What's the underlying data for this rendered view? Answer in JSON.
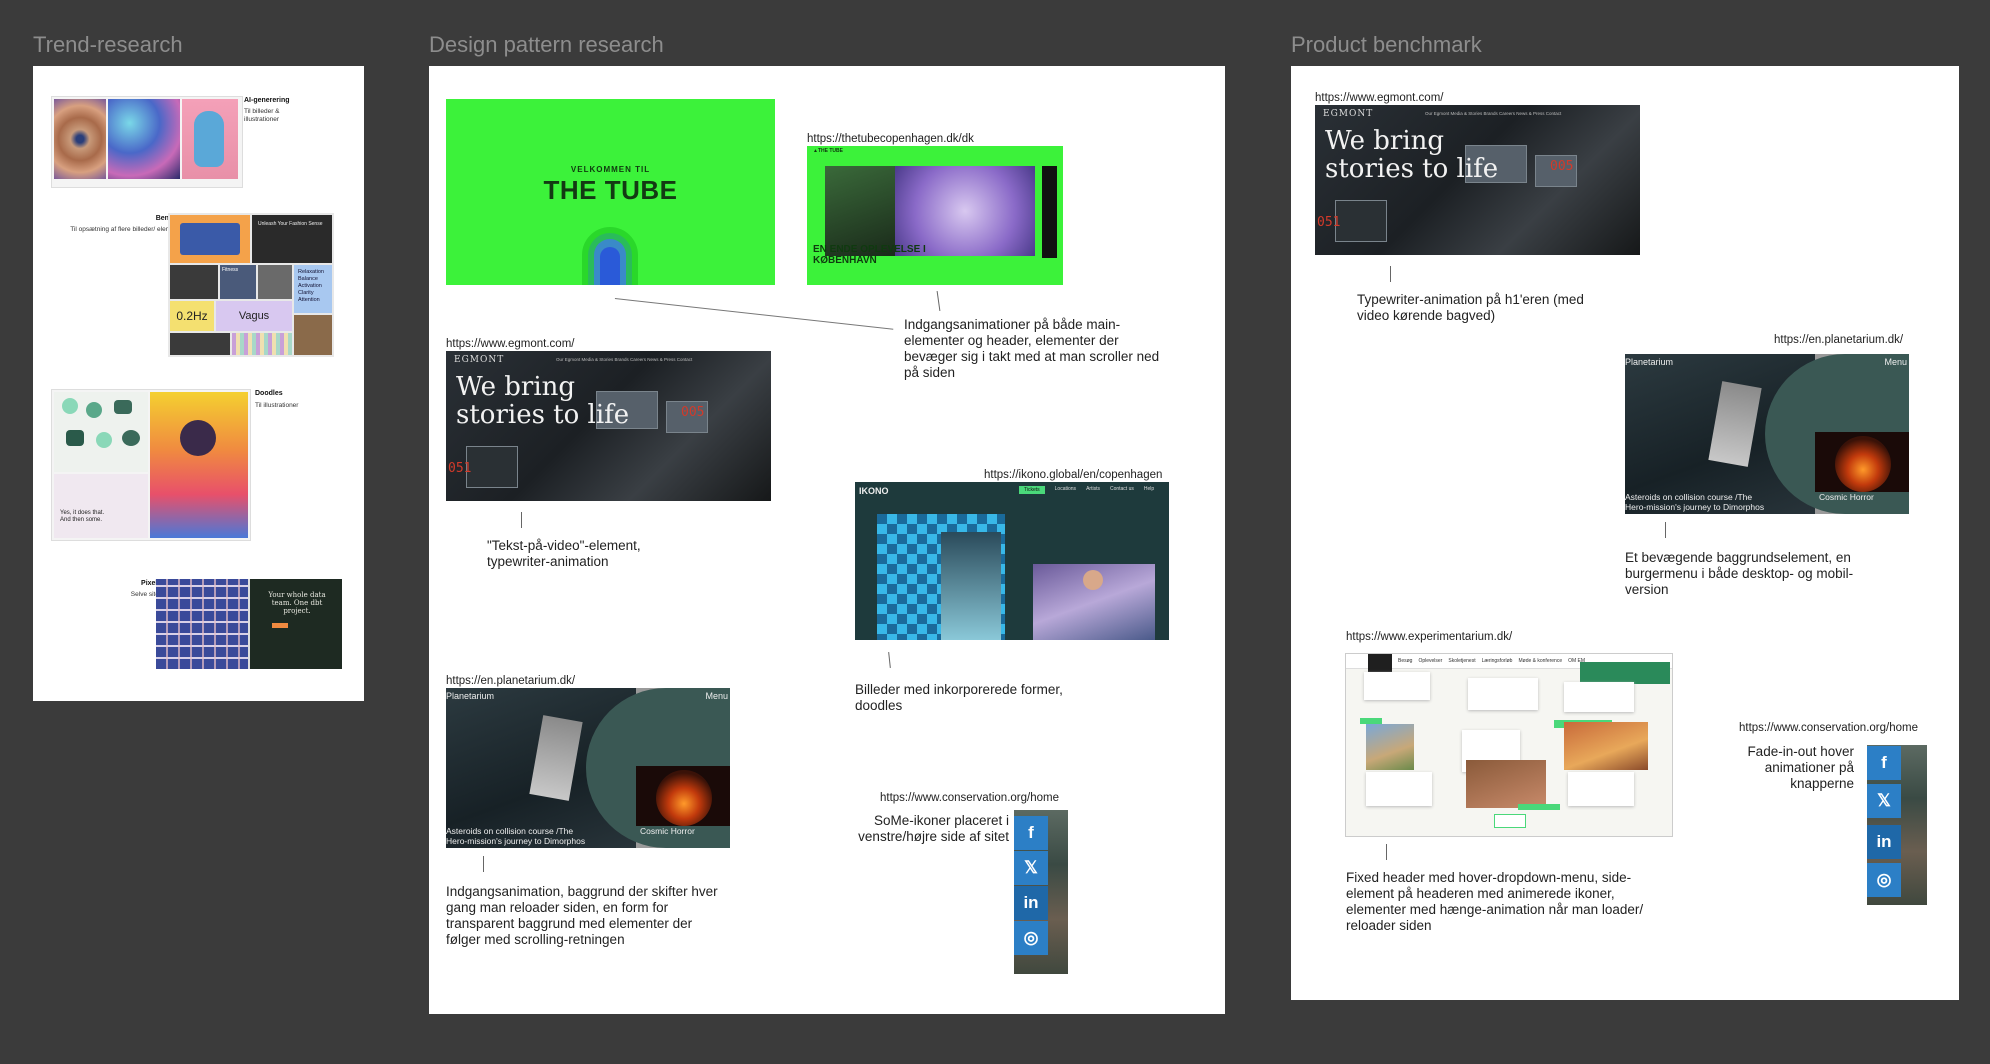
{
  "frames": {
    "trend": {
      "title": "Trend-research"
    },
    "design": {
      "title": "Design pattern research"
    },
    "benchmark": {
      "title": "Product benchmark"
    }
  },
  "trend": {
    "ai": {
      "title": "AI-generering",
      "text": "Til billeder & illustrationer"
    },
    "bento": {
      "title": "Bento-grids",
      "text": "Til opsætning af flere billeder/ elementer på én gang",
      "tiles": [
        "0.2Hz",
        "Vagus",
        "Relaxation",
        "Balance",
        "Activation",
        "Clarity",
        "Attention",
        "Unleash Your Fashion Sense",
        "Fitness"
      ]
    },
    "doodles": {
      "title": "Doodles",
      "text": "Til illustrationer",
      "tile_text": "Yes, it does that. And then some."
    },
    "pixels": {
      "title": "Pixels & dots",
      "text": "Selve sitets design",
      "tile_text": "Your whole data team. One dbt project."
    }
  },
  "design": {
    "tube": {
      "small": "VELKOMMEN TIL",
      "big": "THE TUBE"
    },
    "tube_url": "https://thetubecopenhagen.dk/dk",
    "tube_sub": "EN ENDE OPLEVELSE I KØBENHAVN",
    "tube_note": "Indgangsanimationer på både main-elementer og header, elementer der bevæger sig i takt med at man scroller ned på siden",
    "egmont_url": "https://www.egmont.com/",
    "egmont_note": "\"Tekst-på-video\"-element, typewriter-animation",
    "ikono_url": "https://ikono.global/en/copenhagen",
    "ikono_logo": "IKONO",
    "ikono_nav": [
      "Tickets",
      "Locations",
      "Artists",
      "Contact us",
      "Help"
    ],
    "ikono_note": "Billeder med inkorporerede former, doodles",
    "planet_url": "https://en.planetarium.dk/",
    "planet_note": "Indgangsanimation, baggrund der skifter hver gang man reloader siden, en form for transparent baggrund med elementer der følger med scrolling-retningen",
    "conservation_url": "https://www.conservation.org/home",
    "conservation_note": "SoMe-ikoner placeret i venstre/højre side af sitet"
  },
  "egmont_shot": {
    "logo": "EGMONT",
    "hero": "We bring stories to life",
    "nav": "Our Egmont   Media & Stories   Brands   Careers   News & Press   Contact"
  },
  "planet_shot": {
    "logo": "Planetarium",
    "menu": "Menu",
    "caption1": "Asteroids on collision course /The Hero-mission's journey to Dimorphos",
    "caption2": "Cosmic Horror"
  },
  "benchmark": {
    "egmont_url": "https://www.egmont.com/",
    "egmont_note": "Typewriter-animation på h1'eren (med video kørende bagved)",
    "planet_url": "https://en.planetarium.dk/",
    "planet_note": "Et bevægende baggrundselement, en burgermenu i både desktop- og mobil-version",
    "experimentarium_url": "https://www.experimentarium.dk/",
    "experimentarium_note": "Fixed header med hover-dropdown-menu, side-element på headeren med animerede ikoner, elementer med hænge-animation når man loader/ reloader siden",
    "experimentarium_nav": [
      "Besøg",
      "Oplevelser",
      "Skoletjenest",
      "Læringsforløb",
      "Møde & konference",
      "OM EM"
    ],
    "conservation_url": "https://www.conservation.org/home",
    "conservation_note": "Fade-in-out hover animationer på knapperne"
  },
  "share_icons": [
    "facebook-icon",
    "x-icon",
    "linkedin-icon",
    "whatsapp-icon"
  ],
  "colors": {
    "canvas": "#3b3b3b",
    "frame": "#ffffff",
    "tube_green": "#3cf23a",
    "share_blue": "#2c7fc6",
    "title_gray": "#8d8d8d"
  }
}
